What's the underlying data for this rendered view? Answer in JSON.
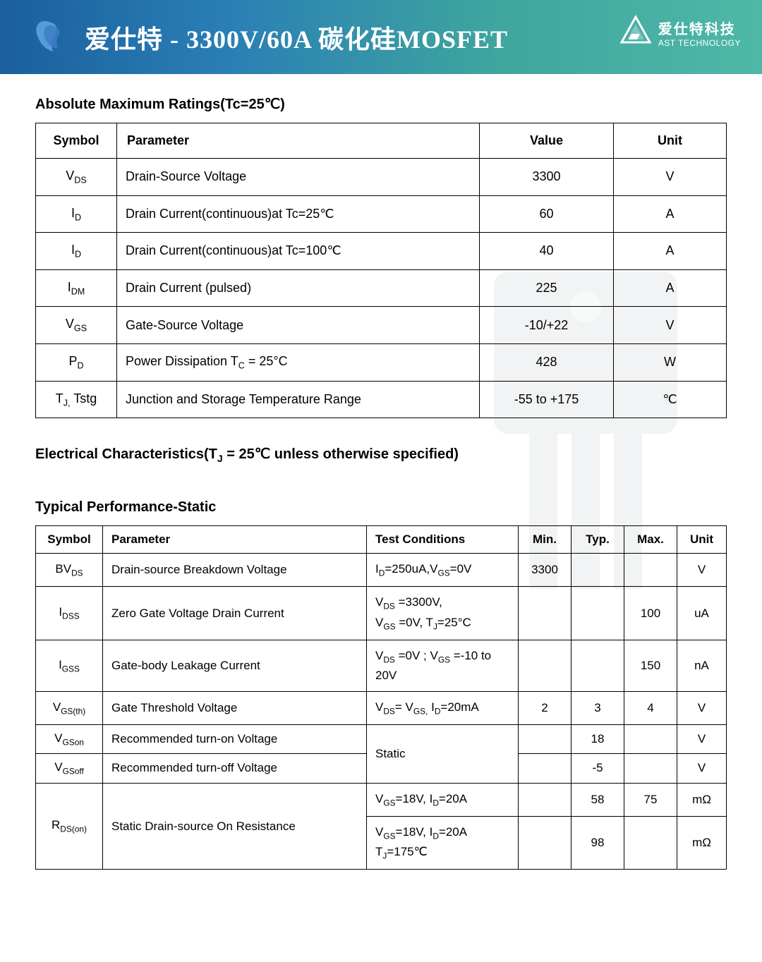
{
  "header": {
    "title": "爱仕特 - 3300V/60A 碳化硅MOSFET",
    "brand_cn": "爱仕特科技",
    "brand_en": "AST TECHNOLOGY"
  },
  "section1": {
    "title": "Absolute Maximum Ratings(Tc=25℃)",
    "columns": [
      "Symbol",
      "Parameter",
      "Value",
      "Unit"
    ],
    "rows": [
      {
        "sym": "V<sub>DS</sub>",
        "param": "Drain-Source Voltage",
        "val": "3300",
        "unit": "V"
      },
      {
        "sym": "I<sub>D</sub>",
        "param": "Drain Current(continuous)at Tc=25℃",
        "val": "60",
        "unit": "A"
      },
      {
        "sym": "I<sub>D</sub>",
        "param": "Drain Current(continuous)at Tc=100℃",
        "val": "40",
        "unit": "A"
      },
      {
        "sym": "I<sub>DM</sub>",
        "param": "Drain Current (pulsed)",
        "val": "225",
        "unit": "A"
      },
      {
        "sym": "V<sub>GS</sub>",
        "param": "Gate-Source Voltage",
        "val": "-10/+22",
        "unit": "V"
      },
      {
        "sym": "P<sub>D</sub>",
        "param": "Power Dissipation T<sub>C</sub> = 25°C",
        "val": "428",
        "unit": "W"
      },
      {
        "sym": "T<sub>J,</sub> Tstg",
        "param": "Junction and Storage Temperature Range",
        "val": "-55 to +175",
        "unit": "℃"
      }
    ]
  },
  "section2": {
    "title": "Electrical Characteristics(T<sub>J</sub> = 25℃  unless otherwise specified)",
    "subtitle": "Typical Performance-Static",
    "columns": [
      "Symbol",
      "Parameter",
      "Test Conditions",
      "Min.",
      "Typ.",
      "Max.",
      "Unit"
    ],
    "rows": [
      {
        "sym": "BV<sub>DS</sub>",
        "param": "Drain-source Breakdown Voltage",
        "cond": "I<sub>D</sub>=250uA,V<sub>GS</sub>=0V",
        "min": "3300",
        "typ": "",
        "max": "",
        "unit": "V",
        "rowspan_param": 1,
        "rowspan_sym": 1
      },
      {
        "sym": "I<sub>DSS</sub>",
        "param": "Zero Gate Voltage Drain Current",
        "cond": "V<sub>DS</sub> =3300V,<br>V<sub>GS</sub> =0V, T<sub>J</sub>=25°C",
        "min": "",
        "typ": "",
        "max": "100",
        "unit": "uA"
      },
      {
        "sym": "I<sub>GSS</sub>",
        "param": "Gate-body Leakage Current",
        "cond": "V<sub>DS</sub> =0V ; V<sub>GS</sub> =-10 to 20V",
        "min": "",
        "typ": "",
        "max": "150",
        "unit": "nA"
      },
      {
        "sym": "V<sub>GS(th)</sub>",
        "param": "Gate Threshold Voltage",
        "cond": "V<sub>DS</sub>= V<sub>GS,</sub> I<sub>D</sub>=20mA",
        "min": "2",
        "typ": "3",
        "max": "4",
        "unit": "V"
      },
      {
        "sym": "V<sub>GSon</sub>",
        "param": "Recommended turn-on Voltage",
        "cond": "Static",
        "min": "",
        "typ": "18",
        "max": "",
        "unit": "V",
        "cond_rowspan": 2
      },
      {
        "sym": "V<sub>GSoff</sub>",
        "param": "Recommended turn-off Voltage",
        "cond": null,
        "min": "",
        "typ": "-5",
        "max": "",
        "unit": "V"
      },
      {
        "sym": "R<sub>DS(on)</sub>",
        "param": "Static Drain-source On Resistance",
        "cond": "V<sub>GS</sub>=18V, I<sub>D</sub>=20A",
        "min": "",
        "typ": "58",
        "max": "75",
        "unit": "mΩ",
        "sym_rowspan": 2,
        "param_rowspan": 2
      },
      {
        "sym": null,
        "param": null,
        "cond": "V<sub>GS</sub>=18V, I<sub>D</sub>=20A<br>T<sub>J</sub>=175℃",
        "min": "",
        "typ": "98",
        "max": "",
        "unit": "mΩ"
      }
    ]
  },
  "colors": {
    "header_grad_start": "#1a5f9e",
    "header_grad_end": "#4eb8a8",
    "border": "#000000",
    "watermark_opacity": 0.06
  }
}
